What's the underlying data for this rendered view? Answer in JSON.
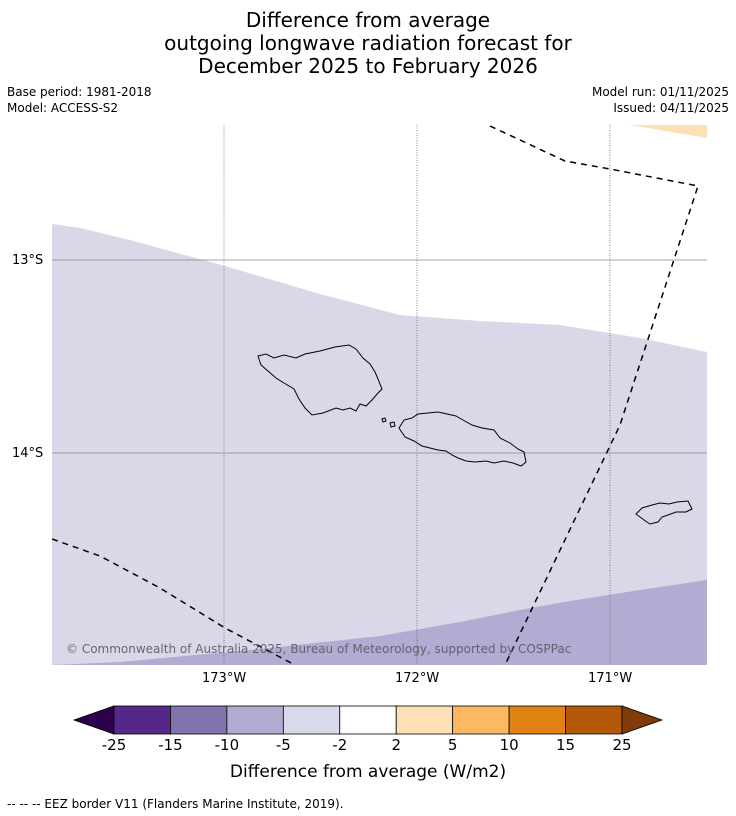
{
  "header": {
    "title_line1": "Difference from average",
    "title_line2": "outgoing longwave radiation forecast for",
    "title_line3": "December 2025 to February 2026",
    "base_period": "Base period: 1981-2018",
    "model": "Model: ACCESS-S2",
    "model_run": "Model run: 01/11/2025",
    "issued": "Issued: 04/11/2025"
  },
  "map": {
    "lat_labels": [
      "13°S",
      "14°S"
    ],
    "lon_labels": [
      "173°W",
      "172°W",
      "171°W"
    ],
    "copyright": "© Commonwealth of Australia 2025, Bureau of Meteorology, supported by COSPPac",
    "colors": {
      "class_neg5_neg2": "#d8d8e9",
      "class_neg10_neg5": "#b2abd2",
      "class_2_5": "#fee0b6",
      "ocean": "#ffffff"
    },
    "features": [
      "eez-border",
      "savaii-island",
      "upolu-island",
      "tutuila-island"
    ]
  },
  "colorbar": {
    "ticks": [
      "-25",
      "-15",
      "-10",
      "-5",
      "-2",
      "2",
      "5",
      "10",
      "15",
      "25"
    ],
    "colors": [
      "#2d004b",
      "#542788",
      "#8073ac",
      "#b2abd2",
      "#d8daeb",
      "#ffffff",
      "#fee0b6",
      "#fdb863",
      "#e08214",
      "#b35806",
      "#7f3b08"
    ],
    "label": "Difference from average (W/m2)"
  },
  "footnote": "--  --  -- EEZ border V11 (Flanders Marine Institute, 2019)."
}
